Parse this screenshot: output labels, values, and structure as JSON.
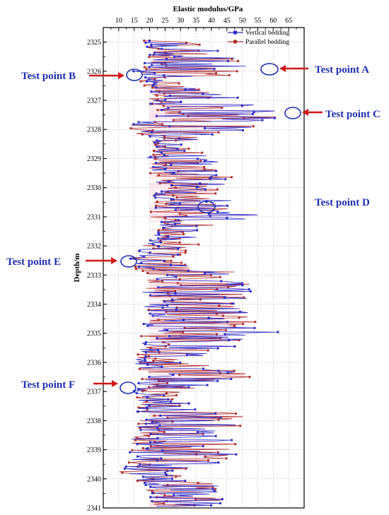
{
  "chart_data": {
    "type": "line",
    "xlabel": "Elastic modulus/GPa",
    "ylabel": "Depth/m",
    "x_axis_position": "top",
    "xlim": [
      5,
      70
    ],
    "ylim": [
      2324.5,
      2341
    ],
    "y_inverted": true,
    "x_ticks": [
      "10",
      "15",
      "20",
      "25",
      "30",
      "35",
      "40",
      "45",
      "50",
      "55",
      "60",
      "65"
    ],
    "y_ticks": [
      "2325",
      "2326",
      "2327",
      "2328",
      "2329",
      "2330",
      "2331",
      "2332",
      "2333",
      "2334",
      "2335",
      "2336",
      "2337",
      "2338",
      "2339",
      "2340",
      "2341"
    ],
    "grid": true,
    "legend_position": "top-right",
    "series": [
      {
        "name": "Vertical bedding",
        "color": "#2b2bcc"
      },
      {
        "name": "Parallel bedding",
        "color": "#b03030"
      }
    ],
    "test_points": [
      {
        "label": "Test point A",
        "x": 58,
        "y": 2325.9,
        "arrow": "right"
      },
      {
        "label": "Test point B",
        "x": 16.5,
        "y": 2326.1,
        "arrow": "left"
      },
      {
        "label": "Test point C",
        "x": 65,
        "y": 2327.5,
        "arrow": "right"
      },
      {
        "label": "Test point D",
        "x": 38,
        "y": 2330.7,
        "arrow": "none"
      },
      {
        "label": "Test point E",
        "x": 14,
        "y": 2332.5,
        "arrow": "left"
      },
      {
        "label": "Test point F",
        "x": 15,
        "y": 2336.9,
        "arrow": "left"
      }
    ]
  },
  "colors": {
    "vertical": "#2b2bcc",
    "parallel": "#b03030",
    "band": "#f6c8d8",
    "annotation": "#1f2fb0",
    "arrow": "#d01818",
    "grid": "#bdbdbd"
  }
}
